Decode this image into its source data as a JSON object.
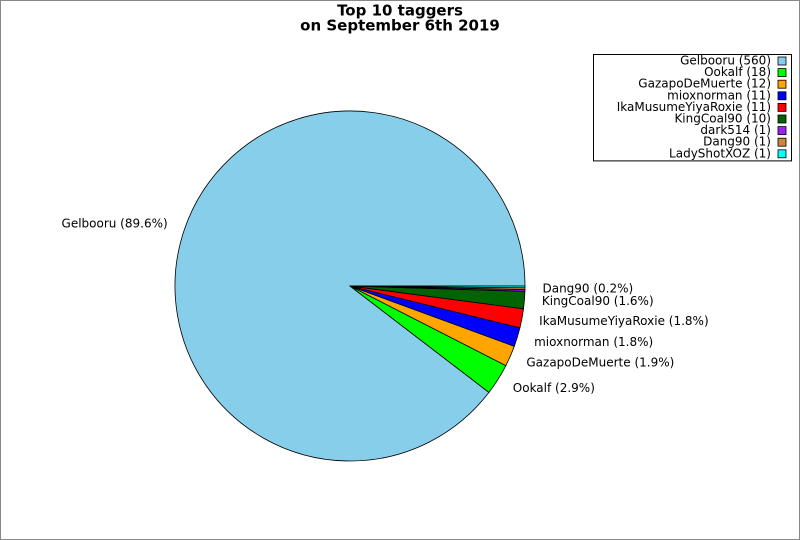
{
  "chart_data": {
    "type": "pie",
    "title": "Top 10 taggers",
    "subtitle": "on September 6th 2019",
    "categories": [
      "Gelbooru",
      "Ookalf",
      "GazapoDeMuerte",
      "mioxnorman",
      "IkaMusumeYiyaRoxie",
      "KingCoal90",
      "dark514",
      "Dang90",
      "LadyShotXOZ"
    ],
    "values": [
      560,
      18,
      12,
      11,
      11,
      10,
      1,
      1,
      1
    ],
    "colors": [
      "#87ceeb",
      "#00ff00",
      "#ffa500",
      "#0000ff",
      "#ff0000",
      "#006400",
      "#a020f0",
      "#cd853f",
      "#00ffff"
    ],
    "legend_labels": [
      "Gelbooru (560)",
      "Ookalf (18)",
      "GazapoDeMuerte (12)",
      "mioxnorman (11)",
      "IkaMusumeYiyaRoxie (11)",
      "KingCoal90 (10)",
      "dark514 (1)",
      "Dang90 (1)",
      "LadyShotXOZ (1)"
    ],
    "slice_labels": [
      "Gelbooru (89.6%)",
      "Ookalf (2.9%)",
      "GazapoDeMuerte (1.9%)",
      "mioxnorman (1.8%)",
      "IkaMusumeYiyaRoxie (1.8%)",
      "KingCoal90 (1.6%)",
      null,
      "Dang90 (0.2%)",
      null
    ],
    "legend": "upper right"
  }
}
